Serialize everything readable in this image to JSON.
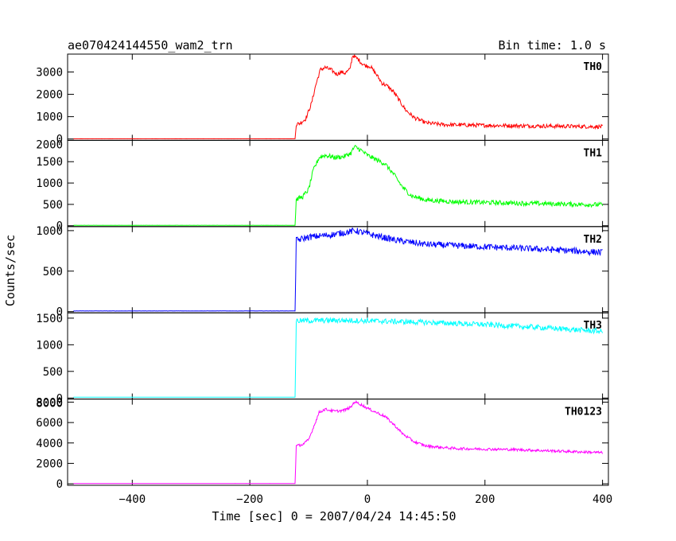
{
  "header": {
    "left_title": "ae070424144550_wam2_trn",
    "right_title": "Bin time: 1.0 s"
  },
  "chart_data": {
    "type": "line",
    "x_label": "Time [sec] 0 = 2007/04/24 14:45:50",
    "y_label": "Counts/sec",
    "x_range": [
      -510,
      410
    ],
    "x_ticks": [
      -400,
      -200,
      0,
      200,
      400
    ],
    "onset_time": -122,
    "panels": [
      {
        "name": "TH0",
        "color": "#ff0000",
        "y_range": [
          -60,
          3800
        ],
        "y_ticks": [
          0,
          1000,
          2000,
          3000
        ],
        "curve": [
          [
            -510,
            10
          ],
          [
            -123,
            10
          ],
          [
            -121,
            650
          ],
          [
            -115,
            700
          ],
          [
            -105,
            900
          ],
          [
            -95,
            1600
          ],
          [
            -88,
            2400
          ],
          [
            -80,
            3100
          ],
          [
            -72,
            3200
          ],
          [
            -62,
            3100
          ],
          [
            -52,
            2900
          ],
          [
            -45,
            3000
          ],
          [
            -38,
            2950
          ],
          [
            -30,
            3100
          ],
          [
            -25,
            3750
          ],
          [
            -20,
            3650
          ],
          [
            -15,
            3550
          ],
          [
            -10,
            3400
          ],
          [
            -5,
            3300
          ],
          [
            5,
            3250
          ],
          [
            15,
            2900
          ],
          [
            25,
            2500
          ],
          [
            35,
            2350
          ],
          [
            45,
            2100
          ],
          [
            55,
            1700
          ],
          [
            65,
            1300
          ],
          [
            80,
            950
          ],
          [
            100,
            720
          ],
          [
            130,
            640
          ],
          [
            200,
            610
          ],
          [
            300,
            580
          ],
          [
            400,
            550
          ]
        ],
        "noise": 90
      },
      {
        "name": "TH1",
        "color": "#00ff00",
        "y_range": [
          -20,
          2000
        ],
        "y_ticks": [
          0,
          500,
          1000,
          1500
        ],
        "top_tick_label": "2000",
        "curve": [
          [
            -510,
            10
          ],
          [
            -123,
            10
          ],
          [
            -121,
            620
          ],
          [
            -110,
            680
          ],
          [
            -100,
            850
          ],
          [
            -92,
            1300
          ],
          [
            -82,
            1600
          ],
          [
            -72,
            1650
          ],
          [
            -55,
            1600
          ],
          [
            -40,
            1620
          ],
          [
            -28,
            1700
          ],
          [
            -22,
            1850
          ],
          [
            -12,
            1780
          ],
          [
            0,
            1650
          ],
          [
            15,
            1550
          ],
          [
            30,
            1450
          ],
          [
            45,
            1200
          ],
          [
            60,
            900
          ],
          [
            75,
            700
          ],
          [
            100,
            600
          ],
          [
            150,
            560
          ],
          [
            250,
            530
          ],
          [
            400,
            490
          ]
        ],
        "noise": 55
      },
      {
        "name": "TH2",
        "color": "#0000ff",
        "y_range": [
          -15,
          1050
        ],
        "y_ticks": [
          0,
          500,
          1000
        ],
        "curve": [
          [
            -510,
            8
          ],
          [
            -123,
            8
          ],
          [
            -121,
            880
          ],
          [
            -100,
            920
          ],
          [
            -60,
            950
          ],
          [
            -20,
            1000
          ],
          [
            0,
            960
          ],
          [
            50,
            880
          ],
          [
            100,
            830
          ],
          [
            200,
            800
          ],
          [
            300,
            770
          ],
          [
            400,
            730
          ]
        ],
        "noise": 40
      },
      {
        "name": "TH3",
        "color": "#00ffff",
        "y_range": [
          -20,
          1600
        ],
        "y_ticks": [
          0,
          500,
          1000,
          1500
        ],
        "curve": [
          [
            -510,
            15
          ],
          [
            -123,
            15
          ],
          [
            -121,
            1450
          ],
          [
            -50,
            1460
          ],
          [
            0,
            1450
          ],
          [
            100,
            1420
          ],
          [
            200,
            1380
          ],
          [
            300,
            1320
          ],
          [
            400,
            1250
          ]
        ],
        "noise": 50
      },
      {
        "name": "TH0123",
        "color": "#ff00ff",
        "y_range": [
          -150,
          8300
        ],
        "y_ticks": [
          0,
          2000,
          4000,
          6000,
          8000
        ],
        "top_tick_label": "8000",
        "curve": [
          [
            -510,
            30
          ],
          [
            -123,
            30
          ],
          [
            -121,
            3700
          ],
          [
            -110,
            3850
          ],
          [
            -100,
            4300
          ],
          [
            -92,
            5500
          ],
          [
            -82,
            7000
          ],
          [
            -72,
            7300
          ],
          [
            -55,
            7100
          ],
          [
            -40,
            7200
          ],
          [
            -28,
            7500
          ],
          [
            -22,
            8050
          ],
          [
            -12,
            7800
          ],
          [
            0,
            7400
          ],
          [
            15,
            7000
          ],
          [
            30,
            6600
          ],
          [
            45,
            5800
          ],
          [
            60,
            4900
          ],
          [
            80,
            4100
          ],
          [
            100,
            3700
          ],
          [
            150,
            3450
          ],
          [
            250,
            3350
          ],
          [
            400,
            3050
          ]
        ],
        "noise": 130
      }
    ]
  }
}
